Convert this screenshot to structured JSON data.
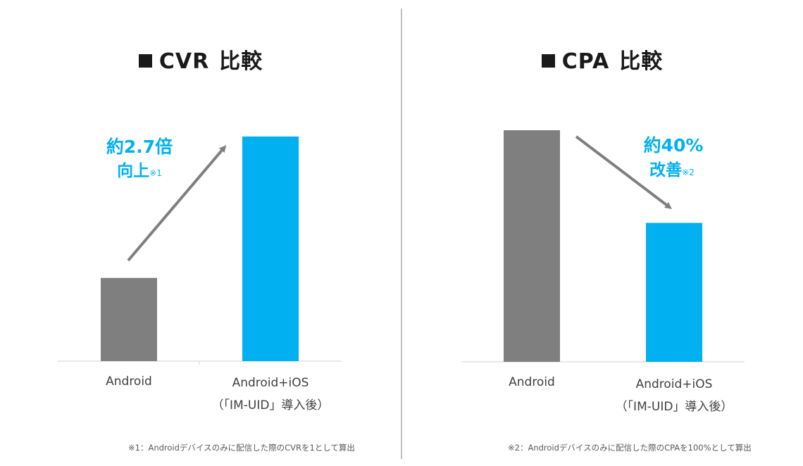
{
  "colors": {
    "android": "#7f7f7f",
    "imuid": "#00b0f0",
    "arrow": "#7f7f7f",
    "callout": "#00b0f0"
  },
  "panels": [
    {
      "title_main": "CVR",
      "title_suffix": "比較",
      "callout_line1": "約2.7倍",
      "callout_line2": "向上",
      "callout_note_mark": "※1",
      "footnote": "※1：Androidデバイスのみに配信した際のCVRを1として算出"
    },
    {
      "title_main": "CPA",
      "title_suffix": "比較",
      "callout_line1": "約40%",
      "callout_line2": "改善",
      "callout_note_mark": "※2",
      "footnote": "※2：Androidデバイスのみに配信した際のCPAを100%として算出"
    }
  ],
  "chart_data": [
    {
      "type": "bar",
      "title": "■CVR 比較",
      "categories": [
        "Android",
        "Android+iOS"
      ],
      "category_sublabels": [
        "",
        "（「IM-UID」導入後）"
      ],
      "values": [
        1,
        2.7
      ],
      "ylim": [
        0,
        2.75
      ],
      "grid": false,
      "legend": "none",
      "annotations": [
        "約2.7倍 向上※1"
      ]
    },
    {
      "type": "bar",
      "title": "■CPA 比較",
      "categories": [
        "Android",
        "Android+iOS"
      ],
      "category_sublabels": [
        "",
        "（「IM-UID」導入後）"
      ],
      "values": [
        100,
        60
      ],
      "ylim": [
        0,
        100
      ],
      "grid": false,
      "legend": "none",
      "annotations": [
        "約40% 改善※2"
      ]
    }
  ]
}
